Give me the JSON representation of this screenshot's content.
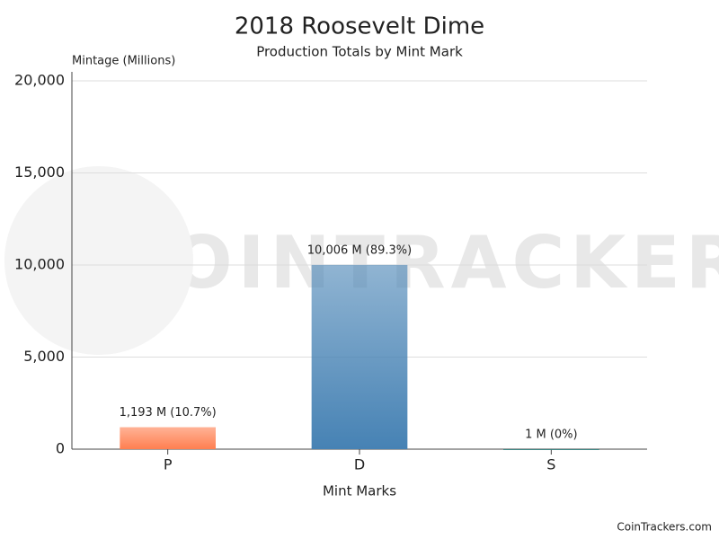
{
  "chart_data": {
    "type": "bar",
    "title": "2018 Roosevelt Dime",
    "subtitle": "Production Totals by Mint Mark",
    "y_axis_label": "Mintage (Millions)",
    "x_axis_label": "Mint Marks",
    "categories": [
      "P",
      "D",
      "S"
    ],
    "values": [
      1193,
      10006,
      1
    ],
    "value_labels": [
      "1,193 M (10.7%)",
      "10,006 M (89.3%)",
      "1 M (0%)"
    ],
    "colors": [
      "#ff7f50",
      "#4682b4",
      "#2e8b87"
    ],
    "ylim": [
      0,
      20000
    ],
    "yticks": [
      0,
      {
        "value": 5000,
        "label": "5,000"
      },
      {
        "value": 10000,
        "label": "10,000"
      },
      {
        "value": 15000,
        "label": "15,000"
      },
      {
        "value": 20000,
        "label": "20,000"
      }
    ],
    "grid": true,
    "watermark": "COINTRACKERS",
    "credit": "CoinTrackers.com"
  }
}
